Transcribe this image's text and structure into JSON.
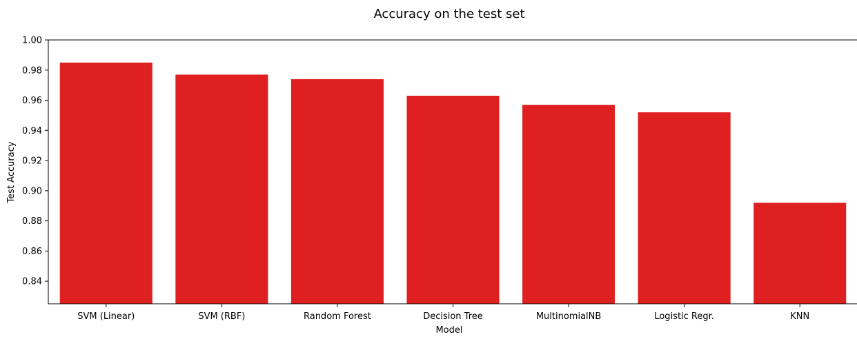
{
  "chart_data": {
    "type": "bar",
    "title": "Accuracy on the test set",
    "xlabel": "Model",
    "ylabel": "Test Accuracy",
    "categories": [
      "SVM (Linear)",
      "SVM (RBF)",
      "Random Forest",
      "Decision Tree",
      "MultinomialNB",
      "Logistic Regr.",
      "KNN"
    ],
    "values": [
      0.985,
      0.977,
      0.974,
      0.963,
      0.957,
      0.952,
      0.892
    ],
    "ylim": [
      0.825,
      1.0
    ],
    "yticks": [
      0.84,
      0.86,
      0.88,
      0.9,
      0.92,
      0.94,
      0.96,
      0.98,
      1.0
    ],
    "ytick_labels": [
      "0.84",
      "0.86",
      "0.88",
      "0.90",
      "0.92",
      "0.94",
      "0.96",
      "0.98",
      "1.00"
    ],
    "bar_color": "#df2020",
    "grid": false,
    "legend": "none"
  }
}
